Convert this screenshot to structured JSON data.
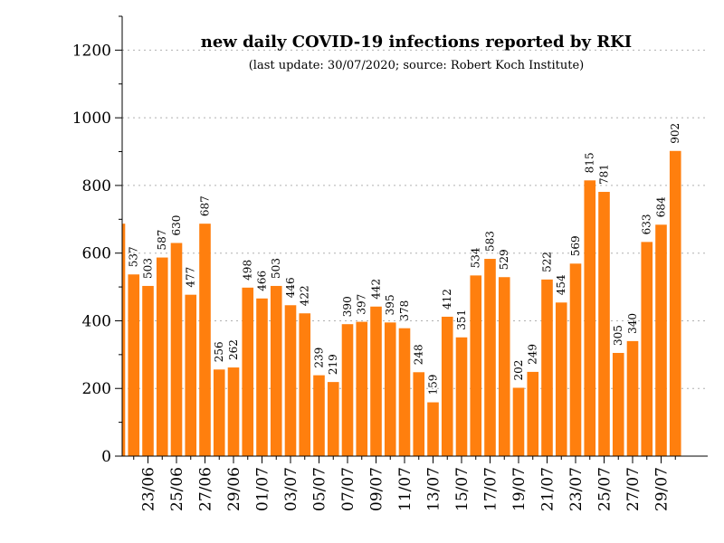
{
  "chart_data": {
    "type": "bar",
    "title": "new daily COVID-19 infections reported by RKI",
    "subtitle": "(last update: 30/07/2020; source: Robert Koch Institute)",
    "categories": [
      "21/06",
      "22/06",
      "23/06",
      "24/06",
      "25/06",
      "26/06",
      "27/06",
      "28/06",
      "29/06",
      "30/06",
      "01/07",
      "02/07",
      "03/07",
      "04/07",
      "05/07",
      "06/07",
      "07/07",
      "08/07",
      "09/07",
      "10/07",
      "11/07",
      "12/07",
      "13/07",
      "14/07",
      "15/07",
      "16/07",
      "17/07",
      "18/07",
      "19/07",
      "20/07",
      "21/07",
      "22/07",
      "23/07",
      "24/07",
      "25/07",
      "26/07",
      "27/07",
      "28/07",
      "29/07",
      "30/07"
    ],
    "values": [
      687,
      537,
      503,
      587,
      630,
      477,
      687,
      256,
      262,
      498,
      466,
      503,
      446,
      422,
      239,
      219,
      390,
      397,
      442,
      395,
      378,
      248,
      159,
      412,
      351,
      534,
      583,
      529,
      202,
      249,
      522,
      454,
      569,
      815,
      781,
      305,
      340,
      633,
      684,
      902
    ],
    "data_labels": [
      null,
      "537",
      "503",
      "587",
      "630",
      "477",
      "687",
      "256",
      "262",
      "498",
      "466",
      "503",
      "446",
      "422",
      "239",
      "219",
      "390",
      "397",
      "442",
      "395",
      "378",
      "248",
      "159",
      "412",
      "351",
      "534",
      "583",
      "529",
      "202",
      "249",
      "522",
      "454",
      "569",
      "815",
      "781",
      "305",
      "340",
      "633",
      "684",
      "902"
    ],
    "x_tick_labels": [
      "23/06",
      "25/06",
      "27/06",
      "29/06",
      "01/07",
      "03/07",
      "05/07",
      "07/07",
      "09/07",
      "11/07",
      "13/07",
      "15/07",
      "17/07",
      "19/07",
      "21/07",
      "23/07",
      "25/07",
      "27/07",
      "29/07"
    ],
    "y_tick_labels": [
      "0",
      "200",
      "400",
      "600",
      "800",
      "1000",
      "1200"
    ],
    "ylim": [
      0,
      1300
    ],
    "y_major_ticks": [
      0,
      200,
      400,
      600,
      800,
      1000,
      1200
    ],
    "y_minor_step": 100,
    "grid": "horizontal dotted",
    "bar_color": "#ff7f0e",
    "xlabel": "",
    "ylabel": ""
  }
}
